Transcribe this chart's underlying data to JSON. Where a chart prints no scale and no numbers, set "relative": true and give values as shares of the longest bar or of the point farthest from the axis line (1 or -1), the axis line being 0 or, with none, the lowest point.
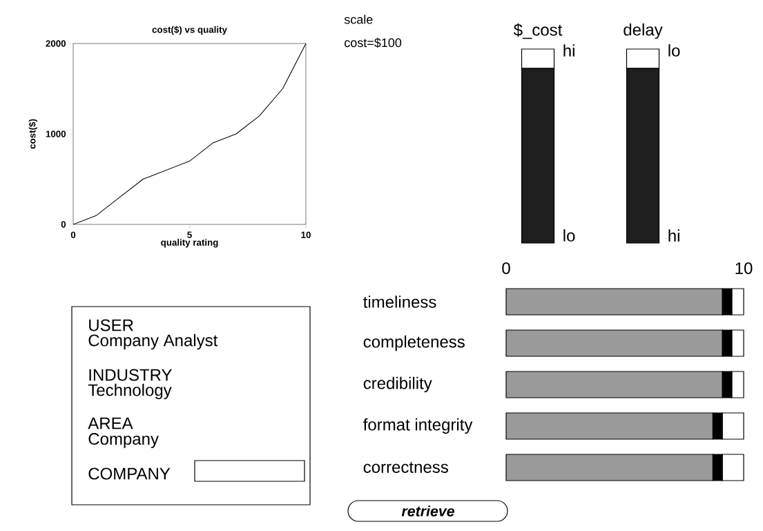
{
  "chart_data": [
    {
      "type": "line",
      "title": "cost($) vs quality",
      "xlabel": "quality rating",
      "ylabel": "cost($)",
      "x": [
        0,
        1,
        2,
        3,
        4,
        5,
        6,
        7,
        8,
        9,
        10
      ],
      "values": [
        0,
        100,
        300,
        500,
        600,
        700,
        900,
        1000,
        1200,
        1500,
        2000
      ],
      "color": "#000000",
      "xlim": [
        0,
        10
      ],
      "ylim": [
        0,
        2000
      ],
      "xticks": [
        0,
        5,
        10
      ],
      "yticks": [
        0,
        1000,
        2000
      ]
    },
    {
      "type": "bar",
      "stacked": true,
      "relative": true,
      "categories": [
        "$_cost",
        "delay"
      ],
      "series": [
        {
          "color": "#1e1e1e",
          "values": [
            0.9,
            0.9
          ]
        },
        {
          "color": "#ffffff",
          "values": [
            0.1,
            0.1
          ]
        }
      ],
      "annotations": [
        {
          "text": "hi",
          "x": "$_cost",
          "y": 1
        },
        {
          "text": "lo",
          "x": "$_cost",
          "y": 0
        },
        {
          "text": "lo",
          "x": "delay",
          "y": 1
        },
        {
          "text": "hi",
          "x": "delay",
          "y": 0
        }
      ]
    },
    {
      "type": "bar",
      "orientation": "horizontal",
      "stacked": true,
      "categories": [
        "timeliness",
        "completeness",
        "credibility",
        "format integrity",
        "correctness"
      ],
      "series": [
        {
          "color": "#9a9a9a",
          "values": [
            9.1,
            9.1,
            9.1,
            8.7,
            8.7
          ]
        },
        {
          "color": "#000000",
          "values": [
            0.4,
            0.4,
            0.4,
            0.4,
            0.4
          ]
        },
        {
          "color": "#ffffff",
          "values": [
            0.5,
            0.5,
            0.5,
            0.9,
            0.9
          ]
        }
      ],
      "xlim": [
        0,
        10
      ],
      "xticks": [
        0,
        10
      ]
    },
    {
      "type": "other",
      "annotations": [
        "scale",
        "cost=$100",
        "USER",
        "Company Analyst",
        "INDUSTRY",
        "Technology",
        "AREA",
        "Company",
        "COMPANY",
        "retrieve"
      ]
    }
  ]
}
